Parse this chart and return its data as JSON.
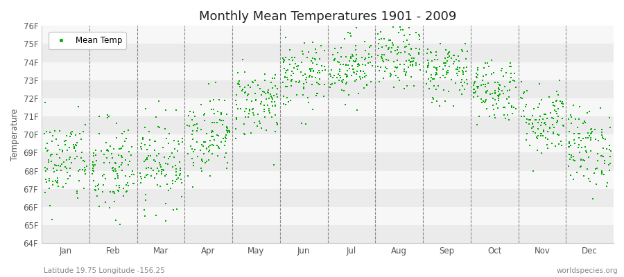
{
  "title": "Monthly Mean Temperatures 1901 - 2009",
  "ylabel": "Temperature",
  "subtitle": "Latitude 19.75 Longitude -156.25",
  "watermark": "worldspecies.org",
  "ylim": [
    64,
    76
  ],
  "ytick_labels": [
    "64F",
    "65F",
    "66F",
    "67F",
    "68F",
    "69F",
    "70F",
    "71F",
    "72F",
    "73F",
    "74F",
    "75F",
    "76F"
  ],
  "ytick_values": [
    64,
    65,
    66,
    67,
    68,
    69,
    70,
    71,
    72,
    73,
    74,
    75,
    76
  ],
  "months": [
    "Jan",
    "Feb",
    "Mar",
    "Apr",
    "May",
    "Jun",
    "Jul",
    "Aug",
    "Sep",
    "Oct",
    "Nov",
    "Dec"
  ],
  "mean_temps": [
    68.5,
    68.0,
    68.5,
    70.0,
    71.8,
    73.2,
    73.8,
    74.2,
    73.5,
    72.5,
    70.8,
    69.3
  ],
  "std_temps": [
    1.2,
    1.4,
    1.2,
    1.1,
    1.0,
    0.9,
    0.85,
    0.85,
    0.85,
    0.9,
    1.0,
    1.1
  ],
  "n_years": 109,
  "scatter_color": "#00aa00",
  "scatter_size": 3.5,
  "background_color": "#ffffff",
  "plot_bg_color": "#ffffff",
  "band_color_odd": "#ebebeb",
  "band_color_even": "#f7f7f7",
  "grid_color": "#888888",
  "legend_label": "Mean Temp",
  "title_fontsize": 13,
  "label_fontsize": 8.5,
  "tick_fontsize": 8.5
}
